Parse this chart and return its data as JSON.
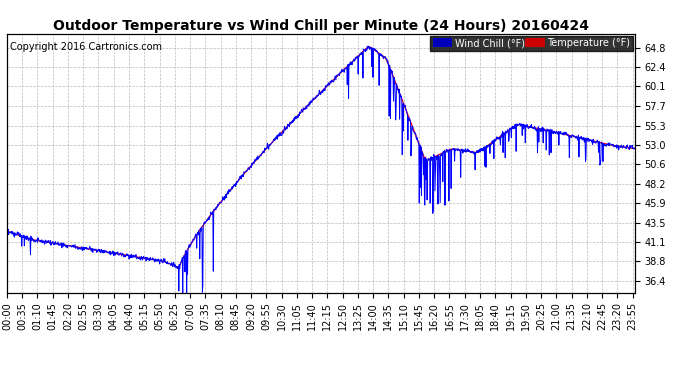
{
  "title": "Outdoor Temperature vs Wind Chill per Minute (24 Hours) 20160424",
  "copyright": "Copyright 2016 Cartronics.com",
  "legend_wind_chill": "Wind Chill (°F)",
  "legend_temperature": "Temperature (°F)",
  "wind_chill_color": "#0000ff",
  "temperature_color": "#ff0000",
  "wind_chill_bg": "#0000bb",
  "temperature_bg": "#cc0000",
  "background_color": "#ffffff",
  "grid_color": "#bbbbbb",
  "ylim": [
    35.0,
    66.5
  ],
  "yticks": [
    36.4,
    38.8,
    41.1,
    43.5,
    45.9,
    48.2,
    50.6,
    53.0,
    55.3,
    57.7,
    60.1,
    62.4,
    64.8
  ],
  "xtick_labels": [
    "00:00",
    "00:35",
    "01:10",
    "01:45",
    "02:20",
    "02:55",
    "03:30",
    "04:05",
    "04:40",
    "05:15",
    "05:50",
    "06:25",
    "07:00",
    "07:35",
    "08:10",
    "08:45",
    "09:20",
    "09:55",
    "10:30",
    "11:05",
    "11:40",
    "12:15",
    "12:50",
    "13:25",
    "14:00",
    "14:35",
    "15:10",
    "15:45",
    "16:20",
    "16:55",
    "17:30",
    "18:05",
    "18:40",
    "19:15",
    "19:50",
    "20:25",
    "21:00",
    "21:35",
    "22:10",
    "22:45",
    "23:20",
    "23:55"
  ],
  "title_fontsize": 10,
  "copyright_fontsize": 7,
  "tick_fontsize": 7
}
